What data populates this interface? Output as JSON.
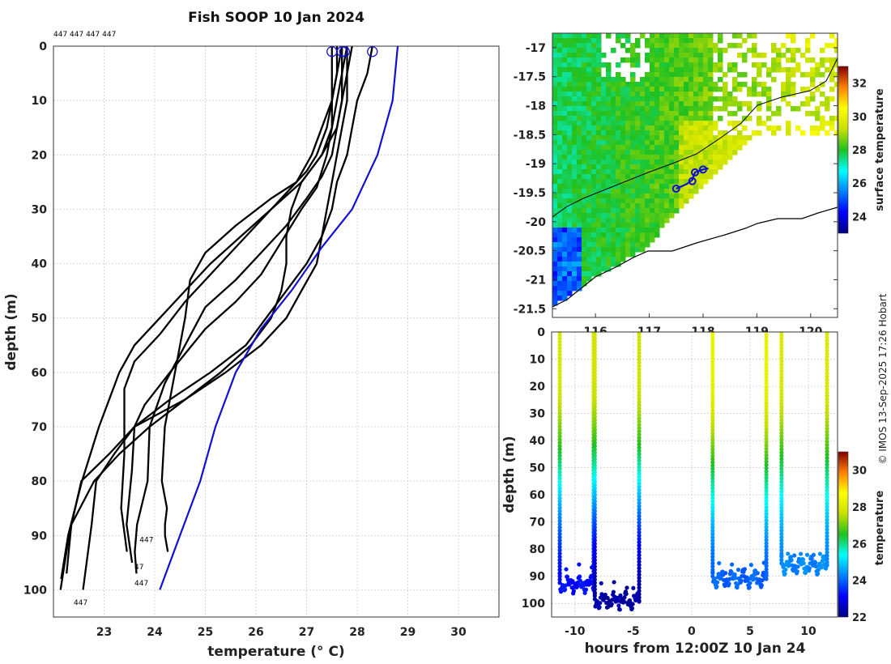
{
  "figure": {
    "title": "Fish SOOP 10 Jan 2024",
    "credit": "© IMOS 13-Sep-2025 17:26 Hobart"
  },
  "chart_data": [
    {
      "type": "line",
      "panel": "profiles",
      "title": "Fish SOOP 10 Jan 2024",
      "xlabel": "temperature (° C)",
      "ylabel": "depth (m)",
      "xlim": [
        22,
        30.8
      ],
      "ylim": [
        105,
        0
      ],
      "xticks": [
        23,
        24,
        25,
        26,
        27,
        28,
        29,
        30
      ],
      "yticks": [
        0,
        10,
        20,
        30,
        40,
        50,
        60,
        70,
        80,
        90,
        100
      ],
      "top_annotation": "447 447 447 447",
      "id_labels": [
        {
          "text": "447",
          "x": 23.7,
          "y": 91.2
        },
        {
          "text": "47",
          "x": 23.6,
          "y": 96.2
        },
        {
          "text": "447",
          "x": 23.6,
          "y": 99.2
        },
        {
          "text": "447",
          "x": 22.4,
          "y": 102.8
        }
      ],
      "climatology": {
        "name": "climatology",
        "color": "#1010d0",
        "x": [
          28.8,
          28.7,
          28.4,
          27.9,
          27.3,
          26.7,
          26.1,
          25.6,
          25.2,
          24.9,
          24.5,
          24.1
        ],
        "y": [
          0,
          10,
          20,
          30,
          37,
          45,
          52,
          60,
          70,
          80,
          90,
          100
        ]
      },
      "surface_markers": [
        {
          "x": 27.5,
          "y": 1
        },
        {
          "x": 27.7,
          "y": 1
        },
        {
          "x": 27.75,
          "y": 1
        },
        {
          "x": 28.3,
          "y": 1
        }
      ],
      "series": [
        {
          "name": "profile-1",
          "x": [
            27.7,
            27.6,
            27.5,
            27.3,
            27.1,
            26.8,
            26.3,
            25.6,
            25.0,
            24.7,
            24.6,
            24.4,
            24.2,
            24.2,
            24.2,
            24.2,
            24.25,
            24.2
          ],
          "y": [
            0,
            5,
            10,
            15,
            20,
            25,
            28,
            33,
            38,
            43,
            50,
            60,
            70,
            80,
            85,
            88,
            90,
            93
          ]
        },
        {
          "name": "profile-2",
          "x": [
            27.8,
            27.7,
            27.7,
            27.6,
            27.5,
            27.3,
            27.0,
            26.6,
            26.1,
            25.6,
            25.0,
            24.6,
            24.2,
            23.9,
            23.8,
            23.7,
            23.6,
            23.6
          ],
          "y": [
            0,
            5,
            10,
            15,
            20,
            24,
            28,
            33,
            38,
            43,
            48,
            55,
            62,
            70,
            80,
            88,
            93,
            97
          ]
        },
        {
          "name": "profile-3",
          "x": [
            27.6,
            27.6,
            27.5,
            27.5,
            27.4,
            27.2,
            26.9,
            26.5,
            26.1,
            25.6,
            25.0,
            24.3,
            23.8,
            23.6,
            23.55,
            23.5,
            23.5
          ],
          "y": [
            0,
            5,
            10,
            15,
            20,
            26,
            30,
            36,
            42,
            47,
            52,
            60,
            66,
            70,
            78,
            88,
            95
          ]
        },
        {
          "name": "profile-4",
          "x": [
            27.5,
            27.5,
            27.5,
            27.4,
            27.2,
            27.0,
            26.6,
            26.1,
            25.6,
            25.1,
            24.6,
            24.1,
            23.6,
            23.4,
            23.4,
            23.35,
            23.4
          ],
          "y": [
            0,
            5,
            10,
            15,
            20,
            23,
            27,
            32,
            37,
            42,
            47,
            53,
            58,
            63,
            75,
            85,
            93
          ]
        },
        {
          "name": "profile-5",
          "x": [
            27.9,
            27.8,
            27.7,
            27.6,
            27.3,
            26.9,
            26.7,
            26.6,
            26.6,
            26.5,
            26.3,
            25.9,
            25.3,
            24.6,
            23.9,
            23.3,
            22.8,
            22.4,
            22.2
          ],
          "y": [
            0,
            5,
            10,
            15,
            20,
            25,
            30,
            35,
            40,
            45,
            50,
            55,
            60,
            65,
            70,
            75,
            80,
            88,
            97
          ]
        },
        {
          "name": "profile-6",
          "x": [
            27.8,
            27.8,
            27.8,
            27.7,
            27.6,
            27.5,
            27.4,
            27.3,
            27.2,
            26.9,
            26.6,
            26.1,
            25.4,
            24.6,
            23.6,
            23.1,
            22.6,
            22.3,
            22.1
          ],
          "y": [
            0,
            5,
            10,
            15,
            20,
            25,
            30,
            35,
            40,
            45,
            50,
            55,
            60,
            65,
            70,
            75,
            80,
            90,
            100
          ]
        },
        {
          "name": "profile-7",
          "x": [
            28.3,
            28.2,
            28.0,
            27.9,
            27.8,
            27.6,
            27.5,
            27.3,
            27.0,
            26.6,
            26.2,
            25.8,
            25.1,
            24.3,
            23.6,
            23.2,
            22.9,
            22.7,
            22.6
          ],
          "y": [
            0,
            5,
            10,
            15,
            20,
            25,
            30,
            35,
            40,
            45,
            50,
            55,
            60,
            65,
            70,
            75,
            80,
            88,
            100
          ]
        },
        {
          "name": "profile-8",
          "x": [
            27.7,
            27.7,
            27.6,
            27.5,
            27.3,
            26.9,
            26.3,
            25.7,
            25.1,
            24.6,
            24.1,
            23.6,
            23.3,
            23.1,
            22.9,
            22.6,
            22.3,
            22.1
          ],
          "y": [
            0,
            5,
            10,
            15,
            20,
            25,
            30,
            35,
            40,
            45,
            50,
            55,
            60,
            65,
            70,
            80,
            90,
            98
          ]
        }
      ]
    },
    {
      "type": "heatmap",
      "panel": "sst-map",
      "colorbar_label": "surface temperature",
      "colorbar_range": [
        23,
        33
      ],
      "colorbar_ticks": [
        24,
        26,
        28,
        30,
        32
      ],
      "xlim": [
        115.2,
        120.5
      ],
      "ylim": [
        -21.65,
        -16.75
      ],
      "xticks": [
        116,
        117,
        118,
        119,
        120
      ],
      "yticks": [
        -17,
        -17.5,
        -18,
        -18.5,
        -19,
        -19.5,
        -20,
        -20.5,
        -21,
        -21.5
      ],
      "track": {
        "lon": [
          117.5,
          117.7,
          117.8,
          117.85,
          118.0,
          118.1
        ],
        "lat": [
          -19.43,
          -19.35,
          -19.28,
          -19.15,
          -19.1,
          -19.08
        ]
      },
      "markers": [
        {
          "lon": 117.5,
          "lat": -19.43
        },
        {
          "lon": 117.8,
          "lat": -19.3
        },
        {
          "lon": 117.85,
          "lat": -19.15
        },
        {
          "lon": 118.0,
          "lat": -19.1
        }
      ]
    },
    {
      "type": "scatter",
      "panel": "depth-time",
      "xlabel": "hours from 12:00Z 10 Jan 24",
      "ylabel": "depth (m)",
      "colorbar_label": "temperature",
      "colorbar_range": [
        22,
        31
      ],
      "colorbar_ticks": [
        22,
        24,
        26,
        28,
        30
      ],
      "xlim": [
        -12,
        12.5
      ],
      "ylim": [
        105,
        0
      ],
      "xticks": [
        -10,
        -5,
        0,
        5,
        10
      ],
      "yticks": [
        0,
        10,
        20,
        30,
        40,
        50,
        60,
        70,
        80,
        90,
        100
      ],
      "casts": [
        {
          "t_down": -11.3,
          "t_up": -8.4,
          "surface_temp": 27.9,
          "bottom_temp": 23.2,
          "bottom_depth": 93
        },
        {
          "t_down": -8.3,
          "t_up": -4.5,
          "surface_temp": 27.8,
          "bottom_temp": 22.3,
          "bottom_depth": 99
        },
        {
          "t_down": 1.8,
          "t_up": 6.4,
          "surface_temp": 28.3,
          "bottom_temp": 24.0,
          "bottom_depth": 91
        },
        {
          "t_down": 7.7,
          "t_up": 11.6,
          "surface_temp": 28.0,
          "bottom_temp": 24.3,
          "bottom_depth": 86
        }
      ]
    }
  ]
}
